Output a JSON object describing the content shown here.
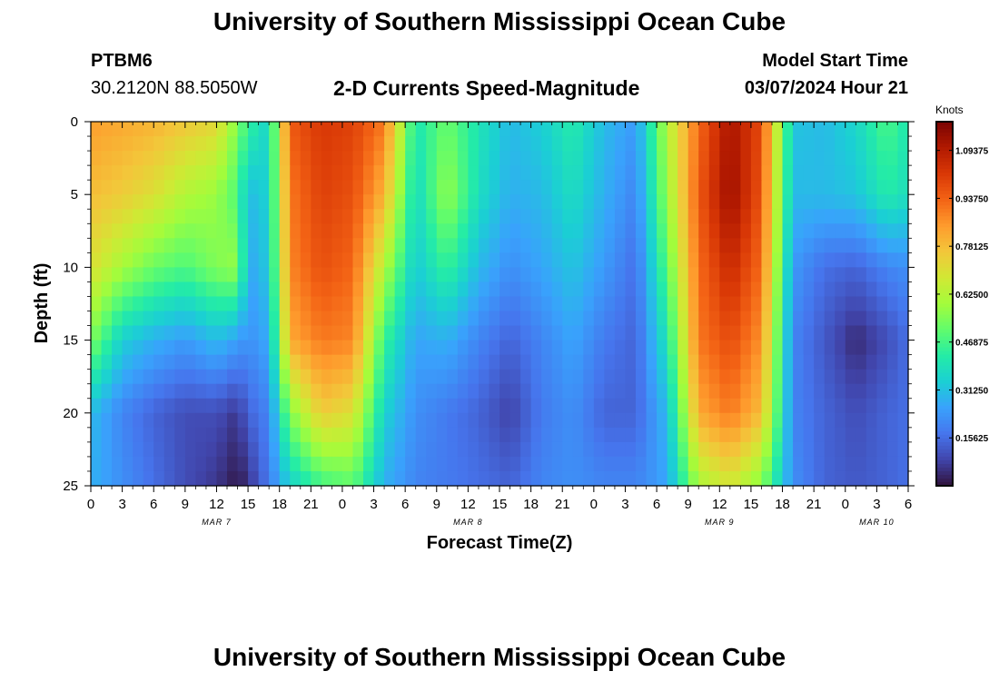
{
  "header": {
    "title": "University of Southern Mississippi Ocean Cube",
    "station_id": "PTBM6",
    "station_coords": "30.2120N  88.5050W",
    "plot_title": "2-D Currents Speed-Magnitude",
    "model_label": "Model Start Time",
    "model_time": "03/07/2024 Hour 21"
  },
  "footer": {
    "title": "University of Southern Mississippi Ocean Cube"
  },
  "chart_data": {
    "type": "heatmap",
    "title": "2-D Currents Speed-Magnitude",
    "xlabel": "Forecast Time(Z)",
    "ylabel": "Depth (ft)",
    "x_ticks": [
      "0",
      "3",
      "6",
      "9",
      "12",
      "15",
      "18",
      "21",
      "0",
      "3",
      "6",
      "9",
      "12",
      "15",
      "18",
      "21",
      "0",
      "3",
      "6",
      "9",
      "12",
      "15",
      "18",
      "21",
      "0",
      "3",
      "6"
    ],
    "x_range_hours": [
      0,
      78
    ],
    "y_ticks": [
      "0",
      "5",
      "10",
      "15",
      "20",
      "25"
    ],
    "ylim": [
      0,
      25
    ],
    "y_inverted": true,
    "date_labels": [
      {
        "label": "MAR 7",
        "hour": 12
      },
      {
        "label": "MAR 8",
        "hour": 36
      },
      {
        "label": "MAR 9",
        "hour": 60
      },
      {
        "label": "MAR 10",
        "hour": 75
      }
    ],
    "colorbar": {
      "title": "Knots",
      "vmin": 0,
      "vmax": 1.1875,
      "ticks": [
        0.15625,
        0.3125,
        0.46875,
        0.625,
        0.78125,
        0.9375,
        1.09375
      ],
      "tick_labels": [
        "0.15625",
        "0.31250",
        "0.46875",
        "0.62500",
        "0.78125",
        "0.93750",
        "1.09375"
      ],
      "colors": [
        "#30123b",
        "#4145ab",
        "#4675ed",
        "#39a2fc",
        "#1bcfd4",
        "#24eca6",
        "#61fc6c",
        "#a4fc3b",
        "#d1e834",
        "#f3c63a",
        "#fe9b2d",
        "#f36315",
        "#d93806",
        "#b11901",
        "#7a0402"
      ]
    },
    "depth_levels_ft": [
      0,
      5,
      10,
      15,
      20,
      25
    ],
    "columns": [
      {
        "hour": 0,
        "speed_knots": [
          0.84,
          0.78,
          0.7,
          0.55,
          0.3,
          0.28
        ]
      },
      {
        "hour": 3,
        "speed_knots": [
          0.82,
          0.75,
          0.6,
          0.34,
          0.2,
          0.22
        ]
      },
      {
        "hour": 6,
        "speed_knots": [
          0.8,
          0.7,
          0.52,
          0.28,
          0.14,
          0.16
        ]
      },
      {
        "hour": 9,
        "speed_knots": [
          0.76,
          0.62,
          0.48,
          0.24,
          0.1,
          0.1
        ]
      },
      {
        "hour": 12,
        "speed_knots": [
          0.72,
          0.58,
          0.55,
          0.3,
          0.1,
          0.06
        ]
      },
      {
        "hour": 14,
        "speed_knots": [
          0.55,
          0.48,
          0.58,
          0.25,
          0.06,
          0.01
        ]
      },
      {
        "hour": 15,
        "speed_knots": [
          0.45,
          0.3,
          0.26,
          0.22,
          0.14,
          0.05
        ]
      },
      {
        "hour": 17,
        "speed_knots": [
          0.35,
          0.35,
          0.33,
          0.27,
          0.2,
          0.18
        ]
      },
      {
        "hour": 19,
        "speed_knots": [
          0.95,
          0.9,
          0.88,
          0.82,
          0.55,
          0.34
        ]
      },
      {
        "hour": 22,
        "speed_knots": [
          1.02,
          1.0,
          0.97,
          0.9,
          0.75,
          0.46
        ]
      },
      {
        "hour": 25,
        "speed_knots": [
          1.0,
          0.97,
          0.93,
          0.88,
          0.7,
          0.5
        ]
      },
      {
        "hour": 28,
        "speed_knots": [
          0.9,
          0.8,
          0.62,
          0.45,
          0.35,
          0.28
        ]
      },
      {
        "hour": 31,
        "speed_knots": [
          0.4,
          0.36,
          0.33,
          0.26,
          0.22,
          0.2
        ]
      },
      {
        "hour": 34,
        "speed_knots": [
          0.52,
          0.58,
          0.45,
          0.28,
          0.18,
          0.18
        ]
      },
      {
        "hour": 37,
        "speed_knots": [
          0.4,
          0.38,
          0.3,
          0.2,
          0.14,
          0.16
        ]
      },
      {
        "hour": 40,
        "speed_knots": [
          0.3,
          0.28,
          0.22,
          0.14,
          0.08,
          0.14
        ]
      },
      {
        "hour": 43,
        "speed_knots": [
          0.34,
          0.3,
          0.26,
          0.2,
          0.18,
          0.2
        ]
      },
      {
        "hour": 46,
        "speed_knots": [
          0.42,
          0.38,
          0.32,
          0.26,
          0.22,
          0.22
        ]
      },
      {
        "hour": 49,
        "speed_knots": [
          0.3,
          0.28,
          0.24,
          0.18,
          0.14,
          0.2
        ]
      },
      {
        "hour": 52,
        "speed_knots": [
          0.24,
          0.2,
          0.16,
          0.14,
          0.14,
          0.2
        ]
      },
      {
        "hour": 55,
        "speed_knots": [
          0.62,
          0.58,
          0.5,
          0.4,
          0.3,
          0.26
        ]
      },
      {
        "hour": 58,
        "speed_knots": [
          0.92,
          0.95,
          0.92,
          0.9,
          0.82,
          0.6
        ]
      },
      {
        "hour": 61,
        "speed_knots": [
          1.12,
          1.14,
          1.06,
          0.98,
          0.9,
          0.68
        ]
      },
      {
        "hour": 64,
        "speed_knots": [
          0.98,
          0.96,
          0.92,
          0.86,
          0.78,
          0.55
        ]
      },
      {
        "hour": 67,
        "speed_knots": [
          0.32,
          0.3,
          0.24,
          0.2,
          0.2,
          0.22
        ]
      },
      {
        "hour": 70,
        "speed_knots": [
          0.3,
          0.3,
          0.16,
          0.12,
          0.14,
          0.14
        ]
      },
      {
        "hour": 73,
        "speed_knots": [
          0.36,
          0.32,
          0.14,
          0.04,
          0.1,
          0.12
        ]
      },
      {
        "hour": 76,
        "speed_knots": [
          0.48,
          0.42,
          0.2,
          0.1,
          0.14,
          0.14
        ]
      },
      {
        "hour": 78,
        "speed_knots": [
          0.4,
          0.38,
          0.22,
          0.16,
          0.16,
          0.16
        ]
      }
    ]
  }
}
